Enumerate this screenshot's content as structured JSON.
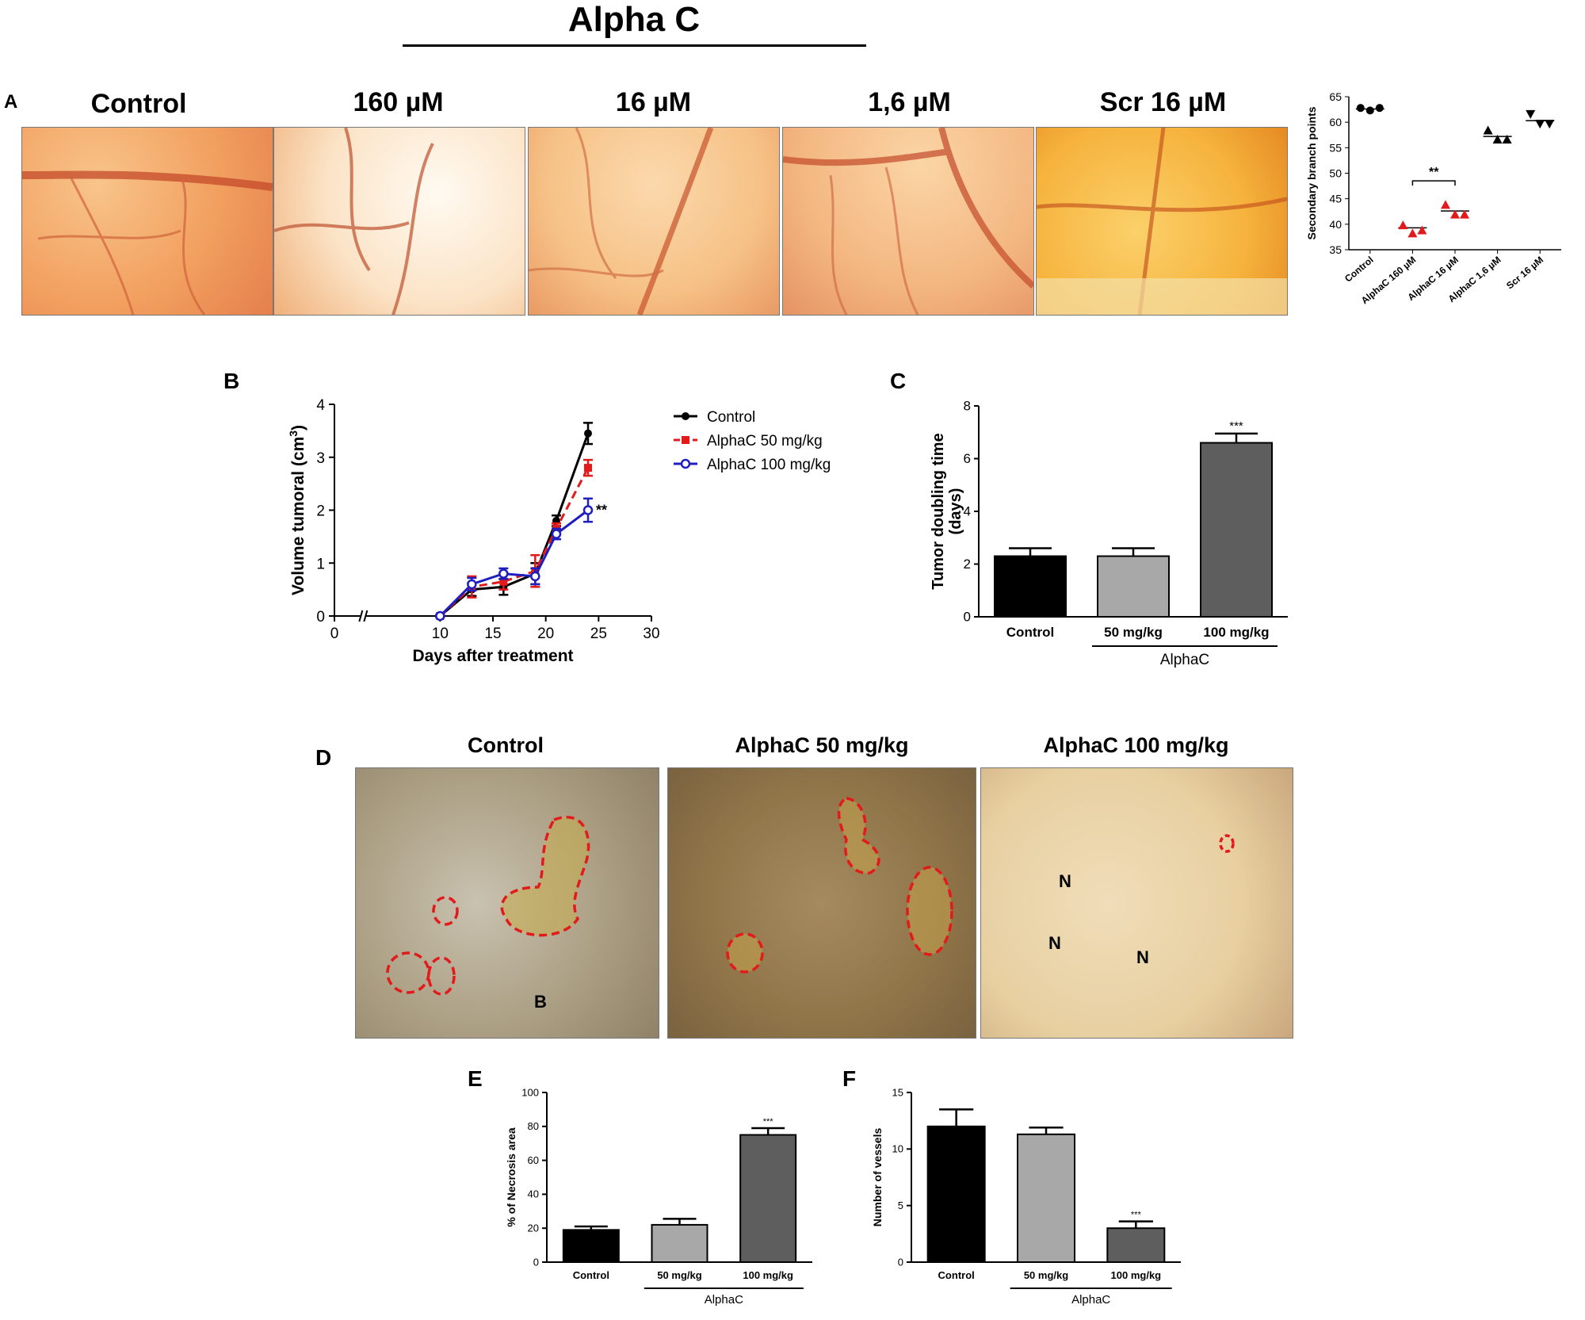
{
  "figure_title": "Alpha C",
  "panels": {
    "A": {
      "letter": "A",
      "column_labels": [
        "Control",
        "160 µM",
        "16 µM",
        "1,6 µM",
        "Scr 16 µM"
      ]
    },
    "B": {
      "letter": "B"
    },
    "C": {
      "letter": "C"
    },
    "D": {
      "letter": "D",
      "column_labels": [
        "Control",
        "AlphaC 50 mg/kg",
        "AlphaC 100 mg/kg"
      ],
      "annotations": {
        "control": [
          "B"
        ],
        "alphac100": [
          "N",
          "N",
          "N"
        ]
      }
    },
    "E": {
      "letter": "E"
    },
    "F": {
      "letter": "F"
    }
  },
  "chart_data": [
    {
      "id": "A_scatter",
      "type": "scatter",
      "ylabel": "Secondary branch points",
      "ylim": [
        35,
        65
      ],
      "yticks": [
        35,
        40,
        45,
        50,
        55,
        60,
        65
      ],
      "categories": [
        "Control",
        "AlphaC 160 µM",
        "AlphaC 16 µM",
        "AlphaC 1,6 µM",
        "Scr 16 µM"
      ],
      "groups": [
        {
          "category": "Control",
          "points": [
            62.8,
            62.3,
            62.8
          ],
          "mean": 62.6,
          "marker": "circle",
          "color": "#000000"
        },
        {
          "category": "AlphaC 160 µM",
          "points": [
            39.8,
            38.2,
            38.8
          ],
          "mean": 39.3,
          "marker": "triangle-up",
          "color": "#e31a1c"
        },
        {
          "category": "AlphaC 16 µM",
          "points": [
            43.8,
            41.9,
            41.9
          ],
          "mean": 42.6,
          "marker": "triangle-up",
          "color": "#e31a1c"
        },
        {
          "category": "AlphaC 1,6 µM",
          "points": [
            58.4,
            56.6,
            56.6
          ],
          "mean": 57.2,
          "marker": "triangle-up",
          "color": "#000000"
        },
        {
          "category": "Scr 16 µM",
          "points": [
            61.6,
            59.7,
            59.7
          ],
          "mean": 60.3,
          "marker": "triangle-down",
          "color": "#000000"
        }
      ],
      "annotations": [
        {
          "text": "**",
          "between": [
            "AlphaC 160 µM",
            "AlphaC 16 µM"
          ]
        }
      ]
    },
    {
      "id": "B_line",
      "type": "line",
      "xlabel": "Days after treatment",
      "ylabel_main": "Volume tumoral (cm",
      "ylabel_sup": "3",
      "ylabel_end": ")",
      "xlim": [
        0,
        30
      ],
      "xticks": [
        0,
        10,
        15,
        20,
        25,
        30
      ],
      "ylim": [
        0,
        4
      ],
      "yticks": [
        0,
        1,
        2,
        3,
        4
      ],
      "axis_break": true,
      "series": [
        {
          "name": "Control",
          "color": "#000000",
          "marker": "circle-filled",
          "dashed": false,
          "x": [
            10,
            13,
            16,
            19,
            21,
            24
          ],
          "y": [
            0.0,
            0.5,
            0.55,
            0.8,
            1.8,
            3.45
          ],
          "err": [
            0.02,
            0.12,
            0.15,
            0.2,
            0.1,
            0.2
          ]
        },
        {
          "name": "AlphaC 50 mg/kg",
          "color": "#e31a1c",
          "marker": "square-filled",
          "dashed": true,
          "x": [
            10,
            13,
            16,
            19,
            21,
            24
          ],
          "y": [
            0.0,
            0.55,
            0.65,
            0.85,
            1.65,
            2.8
          ],
          "err": [
            0.02,
            0.2,
            0.15,
            0.3,
            0.1,
            0.15
          ]
        },
        {
          "name": "AlphaC 100 mg/kg",
          "color": "#1f1fbf",
          "marker": "circle-open",
          "dashed": false,
          "x": [
            10,
            13,
            16,
            19,
            21,
            24
          ],
          "y": [
            0.0,
            0.6,
            0.8,
            0.75,
            1.55,
            2.0
          ],
          "err": [
            0.02,
            0.12,
            0.1,
            0.15,
            0.1,
            0.22
          ]
        }
      ],
      "annotations": [
        {
          "text": "**",
          "x": 24,
          "y": 2.0
        }
      ]
    },
    {
      "id": "C_bar",
      "type": "bar",
      "ylabel_line1": "Tumor doubling time",
      "ylabel_line2": "(days)",
      "ylim": [
        0,
        8
      ],
      "yticks": [
        0,
        2,
        4,
        6,
        8
      ],
      "categories": [
        "Control",
        "50 mg/kg",
        "100 mg/kg"
      ],
      "values": [
        2.3,
        2.3,
        6.6
      ],
      "errors": [
        0.3,
        0.3,
        0.35
      ],
      "colors": [
        "#000000",
        "#a8a8a8",
        "#5e5e5e"
      ],
      "group_label": "AlphaC",
      "annotations": [
        {
          "text": "***",
          "category": "100 mg/kg"
        }
      ]
    },
    {
      "id": "E_bar",
      "type": "bar",
      "ylabel": "% of Necrosis area",
      "ylim": [
        0,
        100
      ],
      "yticks": [
        0,
        20,
        40,
        60,
        80,
        100
      ],
      "categories": [
        "Control",
        "50 mg/kg",
        "100 mg/kg"
      ],
      "values": [
        19,
        22,
        75
      ],
      "errors": [
        2,
        3.5,
        4
      ],
      "colors": [
        "#000000",
        "#a8a8a8",
        "#5e5e5e"
      ],
      "group_label": "AlphaC",
      "annotations": [
        {
          "text": "***",
          "category": "100 mg/kg"
        }
      ]
    },
    {
      "id": "F_bar",
      "type": "bar",
      "ylabel": "Number of vessels",
      "ylim": [
        0,
        15
      ],
      "yticks": [
        0,
        5,
        10,
        15
      ],
      "categories": [
        "Control",
        "50 mg/kg",
        "100 mg/kg"
      ],
      "values": [
        12,
        11.3,
        3
      ],
      "errors": [
        1.5,
        0.6,
        0.6
      ],
      "colors": [
        "#000000",
        "#a8a8a8",
        "#5e5e5e"
      ],
      "group_label": "AlphaC",
      "annotations": [
        {
          "text": "***",
          "category": "100 mg/kg"
        }
      ]
    }
  ]
}
